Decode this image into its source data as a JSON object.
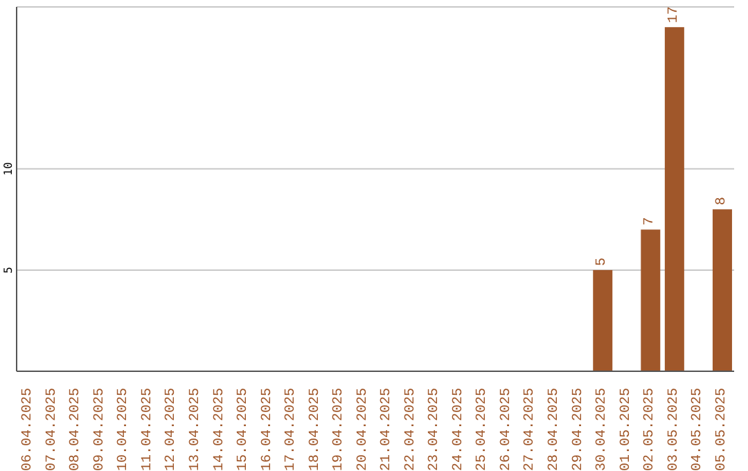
{
  "chart_data": {
    "type": "bar",
    "categories": [
      "06.04.2025",
      "07.04.2025",
      "08.04.2025",
      "09.04.2025",
      "10.04.2025",
      "11.04.2025",
      "12.04.2025",
      "13.04.2025",
      "14.04.2025",
      "15.04.2025",
      "16.04.2025",
      "17.04.2025",
      "18.04.2025",
      "19.04.2025",
      "20.04.2025",
      "21.04.2025",
      "22.04.2025",
      "23.04.2025",
      "24.04.2025",
      "25.04.2025",
      "26.04.2025",
      "27.04.2025",
      "28.04.2025",
      "29.04.2025",
      "30.04.2025",
      "01.05.2025",
      "02.05.2025",
      "03.05.2025",
      "04.05.2025",
      "05.05.2025"
    ],
    "values": [
      0,
      0,
      0,
      0,
      0,
      0,
      0,
      0,
      0,
      0,
      0,
      0,
      0,
      0,
      0,
      0,
      0,
      0,
      0,
      0,
      0,
      0,
      0,
      0,
      5,
      0,
      7,
      17,
      0,
      8
    ],
    "value_labels": [
      null,
      null,
      null,
      null,
      null,
      null,
      null,
      null,
      null,
      null,
      null,
      null,
      null,
      null,
      null,
      null,
      null,
      null,
      null,
      null,
      null,
      null,
      null,
      null,
      "5",
      null,
      "7",
      "17",
      null,
      "8"
    ],
    "color": "#a0572a",
    "ylim": [
      0,
      18
    ],
    "yticks": [
      5,
      10
    ],
    "grid": "y"
  }
}
